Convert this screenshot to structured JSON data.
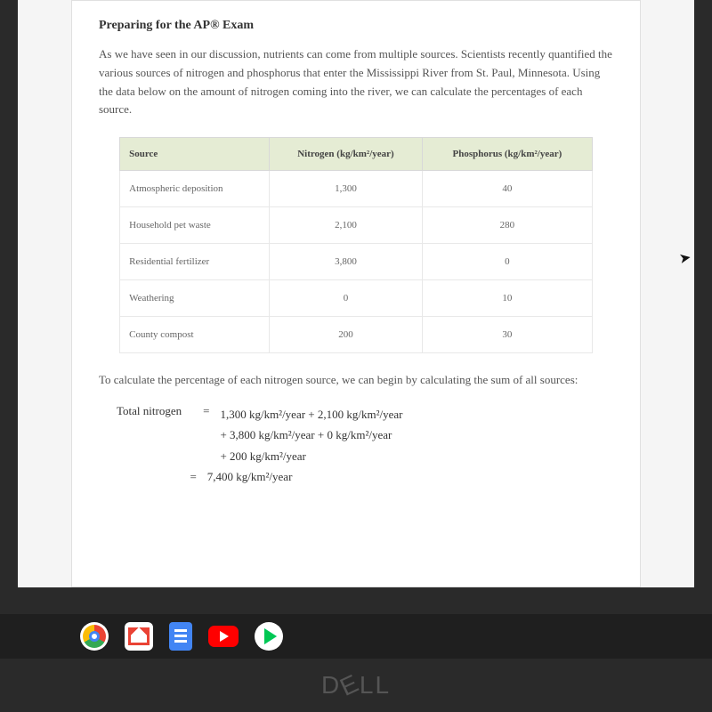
{
  "heading": "Preparing for the AP® Exam",
  "intro": "As we have seen in our discussion, nutrients can come from multiple sources. Scientists recently quantified the various sources of nitrogen and phosphorus that enter the Mississippi River from St. Paul, Minnesota. Using the data below on the amount of nitrogen coming into the river, we can calculate the percentages of each source.",
  "table": {
    "header_bg": "#e5ecd4",
    "border_color": "#e8e8e8",
    "columns": [
      "Source",
      "Nitrogen (kg/km²/year)",
      "Phosphorus (kg/km²/year)"
    ],
    "rows": [
      [
        "Atmospheric deposition",
        "1,300",
        "40"
      ],
      [
        "Household pet waste",
        "2,100",
        "280"
      ],
      [
        "Residential fertilizer",
        "3,800",
        "0"
      ],
      [
        "Weathering",
        "0",
        "10"
      ],
      [
        "County compost",
        "200",
        "30"
      ]
    ]
  },
  "calc_intro": "To calculate the percentage of each nitrogen source, we can begin by calculating the sum of all sources:",
  "equation": {
    "label": "Total nitrogen",
    "lines": [
      "1,300 kg/km²/year + 2,100 kg/km²/year",
      "+ 3,800 kg/km²/year + 0 kg/km²/year",
      "+ 200 kg/km²/year"
    ],
    "result": "7,400 kg/km²/year"
  },
  "taskbar": {
    "icons": [
      "chrome",
      "gmail",
      "docs",
      "youtube",
      "play"
    ]
  },
  "brand": "DELL"
}
